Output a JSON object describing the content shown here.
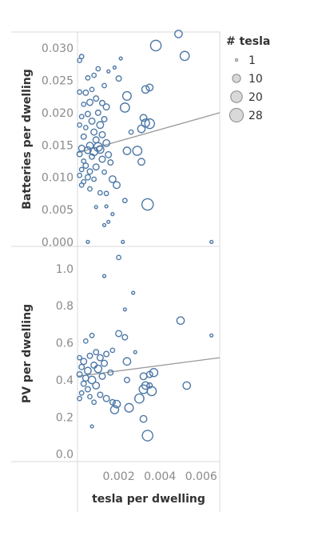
{
  "chart_data": [
    {
      "type": "scatter",
      "panel": "top",
      "ylabel": "Batteries per dwelling",
      "ylim": [
        -0.0007,
        0.0325
      ],
      "yticks": [
        "0.000",
        "0.005",
        "0.010",
        "0.015",
        "0.020",
        "0.025",
        "0.030"
      ],
      "ytick_values": [
        0.0,
        0.005,
        0.01,
        0.015,
        0.02,
        0.025,
        0.03
      ],
      "trend": {
        "x0": 0.0,
        "y0": 0.0138,
        "x1": 0.0069,
        "y1": 0.02
      },
      "points": [
        {
          "x": 0.0001,
          "y": 0.0281,
          "n": 2
        },
        {
          "x": 0.0002,
          "y": 0.0287,
          "n": 2
        },
        {
          "x": 0.0005,
          "y": 0.0254,
          "n": 2
        },
        {
          "x": 0.0008,
          "y": 0.0258,
          "n": 2
        },
        {
          "x": 0.001,
          "y": 0.0268,
          "n": 2
        },
        {
          "x": 0.0013,
          "y": 0.0242,
          "n": 2
        },
        {
          "x": 0.0015,
          "y": 0.0264,
          "n": 1
        },
        {
          "x": 0.0018,
          "y": 0.027,
          "n": 1
        },
        {
          "x": 0.002,
          "y": 0.0253,
          "n": 3
        },
        {
          "x": 0.0021,
          "y": 0.0284,
          "n": 1
        },
        {
          "x": 0.0024,
          "y": 0.0226,
          "n": 8
        },
        {
          "x": 0.0023,
          "y": 0.0208,
          "n": 9
        },
        {
          "x": 0.0033,
          "y": 0.0236,
          "n": 6
        },
        {
          "x": 0.0035,
          "y": 0.0239,
          "n": 5
        },
        {
          "x": 0.0038,
          "y": 0.0304,
          "n": 12
        },
        {
          "x": 0.0049,
          "y": 0.0322,
          "n": 6
        },
        {
          "x": 0.0052,
          "y": 0.0288,
          "n": 9
        },
        {
          "x": 0.0001,
          "y": 0.0232,
          "n": 2
        },
        {
          "x": 0.0004,
          "y": 0.0231,
          "n": 3
        },
        {
          "x": 0.0007,
          "y": 0.0236,
          "n": 2
        },
        {
          "x": 0.0009,
          "y": 0.0222,
          "n": 3
        },
        {
          "x": 0.0006,
          "y": 0.0216,
          "n": 4
        },
        {
          "x": 0.0003,
          "y": 0.0213,
          "n": 2
        },
        {
          "x": 0.0012,
          "y": 0.0215,
          "n": 3
        },
        {
          "x": 0.0014,
          "y": 0.0209,
          "n": 4
        },
        {
          "x": 0.001,
          "y": 0.02,
          "n": 3
        },
        {
          "x": 0.0005,
          "y": 0.0198,
          "n": 3
        },
        {
          "x": 0.0002,
          "y": 0.0194,
          "n": 2
        },
        {
          "x": 0.0007,
          "y": 0.0187,
          "n": 4
        },
        {
          "x": 0.0013,
          "y": 0.019,
          "n": 3
        },
        {
          "x": 0.0011,
          "y": 0.0181,
          "n": 5
        },
        {
          "x": 0.0001,
          "y": 0.0181,
          "n": 2
        },
        {
          "x": 0.0004,
          "y": 0.0177,
          "n": 2
        },
        {
          "x": 0.0008,
          "y": 0.017,
          "n": 4
        },
        {
          "x": 0.0012,
          "y": 0.0166,
          "n": 4
        },
        {
          "x": 0.0003,
          "y": 0.0163,
          "n": 3
        },
        {
          "x": 0.0009,
          "y": 0.0158,
          "n": 4
        },
        {
          "x": 0.0014,
          "y": 0.0153,
          "n": 5
        },
        {
          "x": 0.0006,
          "y": 0.0149,
          "n": 5
        },
        {
          "x": 0.001,
          "y": 0.0147,
          "n": 8
        },
        {
          "x": 0.0002,
          "y": 0.0145,
          "n": 4
        },
        {
          "x": 0.0005,
          "y": 0.0142,
          "n": 5
        },
        {
          "x": 0.0008,
          "y": 0.014,
          "n": 7
        },
        {
          "x": 0.0011,
          "y": 0.0143,
          "n": 6
        },
        {
          "x": 0.0015,
          "y": 0.0135,
          "n": 4
        },
        {
          "x": 0.0001,
          "y": 0.0136,
          "n": 3
        },
        {
          "x": 0.0007,
          "y": 0.0132,
          "n": 3
        },
        {
          "x": 0.0012,
          "y": 0.0128,
          "n": 4
        },
        {
          "x": 0.0003,
          "y": 0.0125,
          "n": 2
        },
        {
          "x": 0.0016,
          "y": 0.0123,
          "n": 3
        },
        {
          "x": 0.0004,
          "y": 0.0118,
          "n": 3
        },
        {
          "x": 0.0009,
          "y": 0.0116,
          "n": 4
        },
        {
          "x": 0.0002,
          "y": 0.0112,
          "n": 2
        },
        {
          "x": 0.0006,
          "y": 0.0109,
          "n": 3
        },
        {
          "x": 0.0013,
          "y": 0.0108,
          "n": 2
        },
        {
          "x": 0.0001,
          "y": 0.0103,
          "n": 2
        },
        {
          "x": 0.0005,
          "y": 0.01,
          "n": 3
        },
        {
          "x": 0.0008,
          "y": 0.0097,
          "n": 2
        },
        {
          "x": 0.0003,
          "y": 0.0093,
          "n": 2
        },
        {
          "x": 0.0017,
          "y": 0.0097,
          "n": 5
        },
        {
          "x": 0.0019,
          "y": 0.0088,
          "n": 5
        },
        {
          "x": 0.0006,
          "y": 0.0082,
          "n": 2
        },
        {
          "x": 0.0002,
          "y": 0.0088,
          "n": 2
        },
        {
          "x": 0.0011,
          "y": 0.0076,
          "n": 2
        },
        {
          "x": 0.0014,
          "y": 0.0075,
          "n": 2
        },
        {
          "x": 0.0023,
          "y": 0.0064,
          "n": 2
        },
        {
          "x": 0.0009,
          "y": 0.0054,
          "n": 1
        },
        {
          "x": 0.0014,
          "y": 0.0055,
          "n": 1
        },
        {
          "x": 0.0017,
          "y": 0.0043,
          "n": 1
        },
        {
          "x": 0.0013,
          "y": 0.0026,
          "n": 1
        },
        {
          "x": 0.0015,
          "y": 0.0031,
          "n": 1
        },
        {
          "x": 0.0026,
          "y": 0.017,
          "n": 2
        },
        {
          "x": 0.0024,
          "y": 0.0141,
          "n": 6
        },
        {
          "x": 0.0029,
          "y": 0.0141,
          "n": 9
        },
        {
          "x": 0.0031,
          "y": 0.0124,
          "n": 5
        },
        {
          "x": 0.0031,
          "y": 0.0175,
          "n": 6
        },
        {
          "x": 0.0033,
          "y": 0.0184,
          "n": 7
        },
        {
          "x": 0.0035,
          "y": 0.0183,
          "n": 10
        },
        {
          "x": 0.0032,
          "y": 0.0192,
          "n": 5
        },
        {
          "x": 0.0034,
          "y": 0.0058,
          "n": 14
        },
        {
          "x": 0.0005,
          "y": 0.0,
          "n": 1
        },
        {
          "x": 0.0022,
          "y": 0.0,
          "n": 1
        },
        {
          "x": 0.0065,
          "y": 0.0,
          "n": 1
        }
      ]
    },
    {
      "type": "scatter",
      "panel": "bottom",
      "ylabel": "PV per dwelling",
      "xlabel": "tesla per dwelling",
      "ylim": [
        -0.04,
        1.12
      ],
      "xlim": [
        0.0,
        0.0069
      ],
      "xticks": [
        "0.002",
        "0.004",
        "0.006"
      ],
      "xtick_values": [
        0.002,
        0.004,
        0.006
      ],
      "yticks": [
        "0.0",
        "0.2",
        "0.4",
        "0.6",
        "0.8",
        "1.0"
      ],
      "ytick_values": [
        0.0,
        0.2,
        0.4,
        0.6,
        0.8,
        1.0
      ],
      "trend": {
        "x0": 0.0,
        "y0": 0.42,
        "x1": 0.0069,
        "y1": 0.52
      },
      "points": [
        {
          "x": 0.002,
          "y": 1.06,
          "n": 2
        },
        {
          "x": 0.0013,
          "y": 0.96,
          "n": 1
        },
        {
          "x": 0.0027,
          "y": 0.87,
          "n": 1
        },
        {
          "x": 0.0023,
          "y": 0.78,
          "n": 1
        },
        {
          "x": 0.005,
          "y": 0.72,
          "n": 6
        },
        {
          "x": 0.0065,
          "y": 0.64,
          "n": 1
        },
        {
          "x": 0.0007,
          "y": 0.64,
          "n": 2
        },
        {
          "x": 0.002,
          "y": 0.65,
          "n": 4
        },
        {
          "x": 0.0023,
          "y": 0.63,
          "n": 3
        },
        {
          "x": 0.0004,
          "y": 0.61,
          "n": 2
        },
        {
          "x": 0.0017,
          "y": 0.56,
          "n": 2
        },
        {
          "x": 0.0028,
          "y": 0.55,
          "n": 1
        },
        {
          "x": 0.0001,
          "y": 0.52,
          "n": 2
        },
        {
          "x": 0.0003,
          "y": 0.5,
          "n": 4
        },
        {
          "x": 0.0006,
          "y": 0.53,
          "n": 3
        },
        {
          "x": 0.0009,
          "y": 0.55,
          "n": 3
        },
        {
          "x": 0.0011,
          "y": 0.52,
          "n": 4
        },
        {
          "x": 0.0014,
          "y": 0.54,
          "n": 3
        },
        {
          "x": 0.0002,
          "y": 0.47,
          "n": 3
        },
        {
          "x": 0.0005,
          "y": 0.45,
          "n": 5
        },
        {
          "x": 0.0008,
          "y": 0.48,
          "n": 4
        },
        {
          "x": 0.001,
          "y": 0.46,
          "n": 6
        },
        {
          "x": 0.0013,
          "y": 0.49,
          "n": 4
        },
        {
          "x": 0.0016,
          "y": 0.44,
          "n": 3
        },
        {
          "x": 0.0001,
          "y": 0.43,
          "n": 3
        },
        {
          "x": 0.0004,
          "y": 0.41,
          "n": 4
        },
        {
          "x": 0.0007,
          "y": 0.4,
          "n": 6
        },
        {
          "x": 0.0012,
          "y": 0.42,
          "n": 4
        },
        {
          "x": 0.0003,
          "y": 0.38,
          "n": 3
        },
        {
          "x": 0.0009,
          "y": 0.37,
          "n": 5
        },
        {
          "x": 0.0005,
          "y": 0.35,
          "n": 3
        },
        {
          "x": 0.0002,
          "y": 0.33,
          "n": 2
        },
        {
          "x": 0.0011,
          "y": 0.32,
          "n": 3
        },
        {
          "x": 0.0006,
          "y": 0.31,
          "n": 2
        },
        {
          "x": 0.0001,
          "y": 0.3,
          "n": 2
        },
        {
          "x": 0.0008,
          "y": 0.28,
          "n": 2
        },
        {
          "x": 0.0014,
          "y": 0.3,
          "n": 4
        },
        {
          "x": 0.0017,
          "y": 0.28,
          "n": 3
        },
        {
          "x": 0.0019,
          "y": 0.27,
          "n": 6
        },
        {
          "x": 0.0018,
          "y": 0.24,
          "n": 7
        },
        {
          "x": 0.0025,
          "y": 0.25,
          "n": 8
        },
        {
          "x": 0.003,
          "y": 0.3,
          "n": 9
        },
        {
          "x": 0.0024,
          "y": 0.5,
          "n": 6
        },
        {
          "x": 0.0024,
          "y": 0.4,
          "n": 3
        },
        {
          "x": 0.0032,
          "y": 0.42,
          "n": 5
        },
        {
          "x": 0.0035,
          "y": 0.43,
          "n": 4
        },
        {
          "x": 0.0037,
          "y": 0.44,
          "n": 7
        },
        {
          "x": 0.0033,
          "y": 0.37,
          "n": 6
        },
        {
          "x": 0.0032,
          "y": 0.35,
          "n": 8
        },
        {
          "x": 0.0036,
          "y": 0.34,
          "n": 9
        },
        {
          "x": 0.0035,
          "y": 0.37,
          "n": 3
        },
        {
          "x": 0.0053,
          "y": 0.37,
          "n": 6
        },
        {
          "x": 0.0032,
          "y": 0.19,
          "n": 5
        },
        {
          "x": 0.0034,
          "y": 0.1,
          "n": 12
        },
        {
          "x": 0.0007,
          "y": 0.15,
          "n": 1
        }
      ]
    }
  ],
  "legend": {
    "title": "# tesla",
    "items": [
      {
        "label": "1",
        "n": 1
      },
      {
        "label": "10",
        "n": 10
      },
      {
        "label": "20",
        "n": 20
      },
      {
        "label": "28",
        "n": 28
      }
    ]
  },
  "colors": {
    "marker": "#4e79a7",
    "trend": "#999999",
    "legend_marker_fill": "#d9d9d9",
    "legend_marker_stroke": "#888888"
  }
}
